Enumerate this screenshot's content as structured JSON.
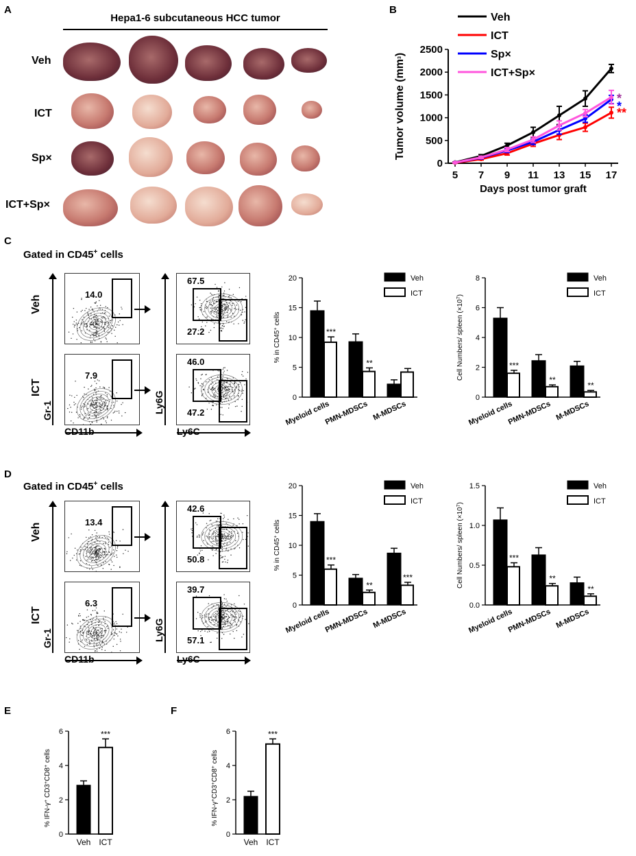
{
  "panels": {
    "A": "A",
    "B": "B",
    "C": "C",
    "D": "D",
    "E": "E",
    "F": "F"
  },
  "panelA": {
    "title": "Hepa1-6 subcutaneous HCC tumor",
    "rows": [
      "Veh",
      "ICT",
      "Sp×",
      "ICT+Sp×"
    ]
  },
  "flow": {
    "gate_label": "Gated in CD45",
    "gate_sup": "+",
    "gate_suffix": " cells",
    "row_veh": "Veh",
    "row_ict": "ICT",
    "axis_gr1": "Gr-1",
    "axis_cd11b": "CD11b",
    "axis_ly6g": "Ly6G",
    "axis_ly6c": "Ly6C",
    "C": {
      "veh_gate": "14.0",
      "ict_gate": "7.9",
      "veh_top": "67.5",
      "veh_bot": "27.2",
      "ict_top": "46.0",
      "ict_bot": "47.2"
    },
    "D": {
      "veh_gate": "13.4",
      "ict_gate": "6.3",
      "veh_top": "42.6",
      "veh_bot": "50.8",
      "ict_top": "39.7",
      "ict_bot": "57.1"
    }
  },
  "colors": {
    "veh": "#000000",
    "ict": "#ff0000",
    "spx": "#0000ff",
    "ictspx": "#ff55dd",
    "star_spx": "#a0309a"
  },
  "chart_data": [
    {
      "id": "B",
      "type": "line",
      "title": "",
      "xlabel": "Days post tumor graft",
      "ylabel": "Tumor volume (mm",
      "ylabel_sup": "3",
      "ylabel_end": ")",
      "x": [
        5,
        7,
        9,
        11,
        13,
        15,
        17
      ],
      "xlim": [
        5,
        17
      ],
      "ylim": [
        0,
        2500
      ],
      "yticks": [
        0,
        500,
        1000,
        1500,
        2000,
        2500
      ],
      "series": [
        {
          "name": "Veh",
          "color": "#000000",
          "marker": "diamond",
          "values": [
            20,
            160,
            390,
            680,
            1050,
            1420,
            2080
          ],
          "errors": [
            10,
            30,
            50,
            110,
            200,
            170,
            90
          ],
          "star": ""
        },
        {
          "name": "ICT",
          "color": "#ff0000",
          "marker": "square",
          "values": [
            10,
            90,
            220,
            430,
            620,
            790,
            1110
          ],
          "errors": [
            8,
            20,
            40,
            60,
            100,
            90,
            120
          ],
          "star": "**"
        },
        {
          "name": "Sp×",
          "color": "#0000ff",
          "marker": "triangle",
          "values": [
            15,
            120,
            280,
            470,
            730,
            980,
            1400
          ],
          "errors": [
            8,
            25,
            45,
            60,
            90,
            80,
            90
          ],
          "star": "*"
        },
        {
          "name": "ICT+Sp×",
          "color": "#ff55dd",
          "marker": "triangle-down",
          "values": [
            15,
            130,
            300,
            520,
            830,
            1100,
            1450
          ],
          "errors": [
            8,
            25,
            45,
            60,
            100,
            80,
            150
          ],
          "star": "*"
        }
      ]
    },
    {
      "id": "C-percent",
      "type": "bar",
      "ylabel": "% in CD45",
      "ylabel_sup": "+",
      "ylabel_end": " cells",
      "categories": [
        "Myeloid cells",
        "PMN-MDSCs",
        "M-MDSCs"
      ],
      "ylim": [
        0,
        20
      ],
      "yticks": [
        0,
        5,
        10,
        15,
        20
      ],
      "series": [
        {
          "name": "Veh",
          "values": [
            14.5,
            9.3,
            2.2
          ],
          "errors": [
            1.6,
            1.3,
            0.7
          ]
        },
        {
          "name": "ICT",
          "values": [
            9.2,
            4.3,
            4.2
          ],
          "errors": [
            0.9,
            0.6,
            0.6
          ]
        }
      ],
      "stars": [
        "***",
        "**",
        ""
      ]
    },
    {
      "id": "C-count",
      "type": "bar",
      "ylabel": "Cell Numbers/ spleen (×10",
      "ylabel_sup": "7",
      "ylabel_end": ")",
      "categories": [
        "Myeloid cells",
        "PMN-MDSCs",
        "M-MDSCs"
      ],
      "ylim": [
        0,
        8
      ],
      "yticks": [
        0,
        2,
        4,
        6,
        8
      ],
      "series": [
        {
          "name": "Veh",
          "values": [
            5.3,
            2.45,
            2.1
          ],
          "errors": [
            0.7,
            0.4,
            0.3
          ]
        },
        {
          "name": "ICT",
          "values": [
            1.6,
            0.7,
            0.35
          ],
          "errors": [
            0.2,
            0.12,
            0.1
          ]
        }
      ],
      "stars": [
        "***",
        "**",
        "**"
      ]
    },
    {
      "id": "D-percent",
      "type": "bar",
      "ylabel": "% in CD45",
      "ylabel_sup": "+",
      "ylabel_end": " cells",
      "categories": [
        "Myeloid cells",
        "PMN-MDSCs",
        "M-MDSCs"
      ],
      "ylim": [
        0,
        20
      ],
      "yticks": [
        0,
        5,
        10,
        15,
        20
      ],
      "series": [
        {
          "name": "Veh",
          "values": [
            14.0,
            4.5,
            8.7
          ],
          "errors": [
            1.3,
            0.6,
            0.8
          ]
        },
        {
          "name": "ICT",
          "values": [
            6.0,
            2.1,
            3.3
          ],
          "errors": [
            0.7,
            0.4,
            0.5
          ]
        }
      ],
      "stars": [
        "***",
        "**",
        "***"
      ]
    },
    {
      "id": "D-count",
      "type": "bar",
      "ylabel": "Cell Numbers/ spleen (×10",
      "ylabel_sup": "7",
      "ylabel_end": ")",
      "categories": [
        "Myeloid cells",
        "PMN-MDSCs",
        "M-MDSCs"
      ],
      "ylim": [
        0,
        1.5
      ],
      "yticks": [
        0.0,
        0.5,
        1.0,
        1.5
      ],
      "series": [
        {
          "name": "Veh",
          "values": [
            1.07,
            0.63,
            0.28
          ],
          "errors": [
            0.15,
            0.09,
            0.07
          ]
        },
        {
          "name": "ICT",
          "values": [
            0.48,
            0.24,
            0.11
          ],
          "errors": [
            0.05,
            0.03,
            0.03
          ]
        }
      ],
      "stars": [
        "***",
        "**",
        "**"
      ]
    },
    {
      "id": "E",
      "type": "bar",
      "ylabel": "% IFN-γ",
      "ylabel_parts": [
        "% IFN-γ",
        "+",
        " CD3",
        "+",
        "CD8",
        "+",
        " cells"
      ],
      "categories": [
        "Veh",
        "ICT"
      ],
      "ylim": [
        0,
        6
      ],
      "yticks": [
        0,
        2,
        4,
        6
      ],
      "values": [
        2.85,
        5.05
      ],
      "errors": [
        0.25,
        0.5
      ],
      "stars": [
        "",
        "***"
      ]
    },
    {
      "id": "F",
      "type": "bar",
      "ylabel": "% IFN-γ",
      "ylabel_parts": [
        "% IFN-γ",
        "+",
        "CD3",
        "+",
        "CD8",
        "+",
        " cells"
      ],
      "categories": [
        "Veh",
        "ICT"
      ],
      "ylim": [
        0,
        6
      ],
      "yticks": [
        0,
        2,
        4,
        6
      ],
      "values": [
        2.2,
        5.25
      ],
      "errors": [
        0.3,
        0.3
      ],
      "stars": [
        "",
        "***"
      ]
    }
  ]
}
